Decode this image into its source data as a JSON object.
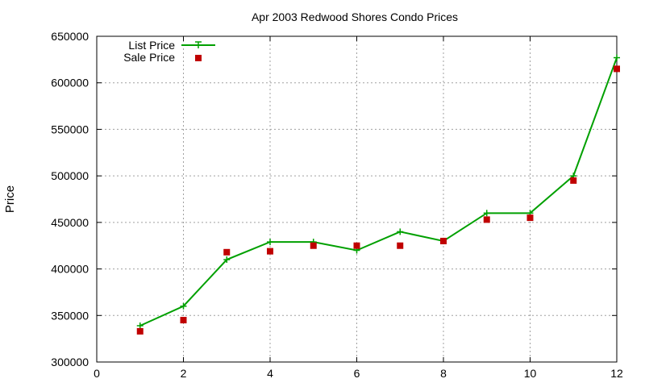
{
  "chart_data": {
    "type": "line",
    "title": "Apr 2003 Redwood Shores Condo Prices",
    "xlabel": "",
    "ylabel": "Price",
    "xlim": [
      0,
      12
    ],
    "ylim": [
      300000,
      650000
    ],
    "xticks": [
      0,
      2,
      4,
      6,
      8,
      10,
      12
    ],
    "yticks": [
      300000,
      350000,
      400000,
      450000,
      500000,
      550000,
      600000,
      650000
    ],
    "grid": true,
    "legend_position": "top-left",
    "x": [
      1,
      2,
      3,
      4,
      5,
      6,
      7,
      8,
      9,
      10,
      11,
      12
    ],
    "series": [
      {
        "name": "List Price",
        "style": "lines+crosses",
        "color": "#00a000",
        "values": [
          339000,
          360000,
          410000,
          429000,
          429000,
          420000,
          440000,
          430000,
          460000,
          460000,
          500000,
          627000
        ]
      },
      {
        "name": "Sale Price",
        "style": "square-points",
        "color": "#c00000",
        "values": [
          333000,
          345000,
          418000,
          419000,
          425000,
          425000,
          425000,
          430000,
          453000,
          455000,
          495000,
          615000
        ]
      }
    ]
  }
}
